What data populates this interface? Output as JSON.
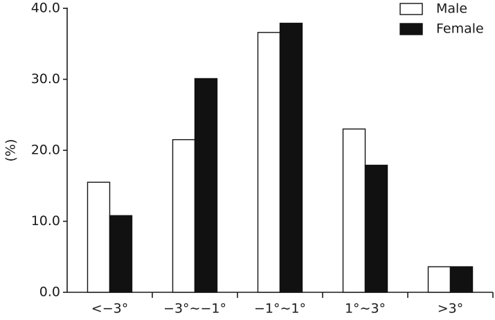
{
  "chart_data": {
    "type": "bar",
    "y_label": "(%)",
    "categories": [
      "<−3°",
      "−3°∼−1°",
      "−1°∼1°",
      "1°∼3°",
      ">3°"
    ],
    "series": [
      {
        "name": "Male",
        "color": "#ffffff",
        "values": [
          15.5,
          21.5,
          36.6,
          23.0,
          3.6
        ]
      },
      {
        "name": "Female",
        "color": "#111111",
        "values": [
          10.8,
          30.1,
          37.9,
          17.9,
          3.6
        ]
      }
    ],
    "ylim": [
      0,
      40
    ],
    "yticks": [
      {
        "value": 0,
        "label": "0.0"
      },
      {
        "value": 10,
        "label": "10.0"
      },
      {
        "value": 20,
        "label": "20.0"
      },
      {
        "value": 30,
        "label": "30.0"
      },
      {
        "value": 40,
        "label": "40.0"
      }
    ],
    "legend": "upper-right",
    "grid": false
  }
}
